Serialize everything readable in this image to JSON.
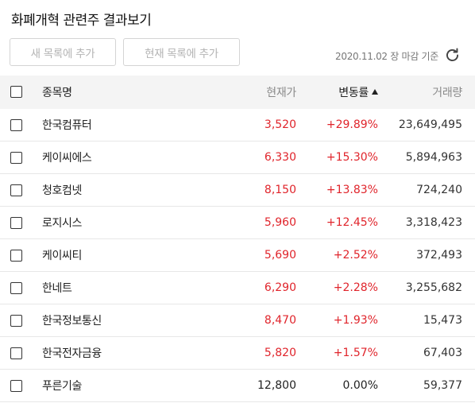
{
  "title": "화폐개혁 관련주 결과보기",
  "buttons": {
    "add_new_list": "새 목록에 추가",
    "add_current_list": "현재 목록에 추가"
  },
  "as_of": "2020.11.02 장 마감 기준",
  "icons": {
    "refresh": "refresh-icon",
    "sort": "sort-ascending-icon",
    "checkbox": "checkbox-icon"
  },
  "colors": {
    "up": "#e0242b",
    "neutral": "#222222"
  },
  "table": {
    "headers": {
      "name": "종목명",
      "price": "현재가",
      "rate": "변동률",
      "volume": "거래량"
    },
    "rows": [
      {
        "name": "한국컴퓨터",
        "price": "3,520",
        "rate": "+29.89%",
        "volume": "23,649,495",
        "trend": "up"
      },
      {
        "name": "케이씨에스",
        "price": "6,330",
        "rate": "+15.30%",
        "volume": "5,894,963",
        "trend": "up"
      },
      {
        "name": "청호컴넷",
        "price": "8,150",
        "rate": "+13.83%",
        "volume": "724,240",
        "trend": "up"
      },
      {
        "name": "로지시스",
        "price": "5,960",
        "rate": "+12.45%",
        "volume": "3,318,423",
        "trend": "up"
      },
      {
        "name": "케이씨티",
        "price": "5,690",
        "rate": "+2.52%",
        "volume": "372,493",
        "trend": "up"
      },
      {
        "name": "한네트",
        "price": "6,290",
        "rate": "+2.28%",
        "volume": "3,255,682",
        "trend": "up"
      },
      {
        "name": "한국정보통신",
        "price": "8,470",
        "rate": "+1.93%",
        "volume": "15,473",
        "trend": "up"
      },
      {
        "name": "한국전자금융",
        "price": "5,820",
        "rate": "+1.57%",
        "volume": "67,403",
        "trend": "up"
      },
      {
        "name": "푸른기술",
        "price": "12,800",
        "rate": "0.00%",
        "volume": "59,377",
        "trend": "flat"
      }
    ]
  }
}
